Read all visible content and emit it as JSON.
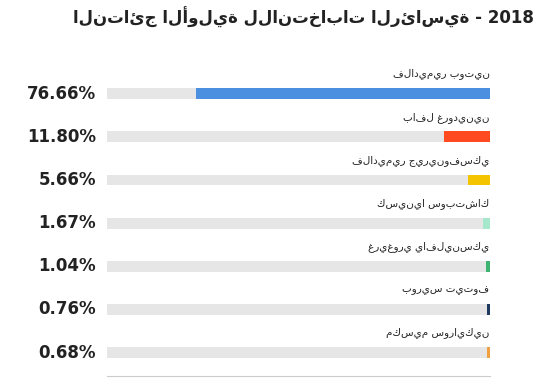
{
  "chart_data": {
    "type": "bar",
    "orientation": "horizontal",
    "title": "النتائج الأولية للانتخابات الرئاسية - 2018",
    "categories": [
      "فلاديمير بوتين",
      "بافل غرودينين",
      "فلاديمير جيرينوفسكي",
      "كسينيا سوبتشاك",
      "غريغوري يافلينسكي",
      "بوريس تيتوف",
      "مكسيم سورايكين"
    ],
    "values": [
      76.66,
      11.8,
      5.66,
      1.67,
      1.04,
      0.76,
      0.68
    ],
    "value_labels": [
      "76.66%",
      "11.80%",
      "5.66%",
      "1.67%",
      "1.04%",
      "0.76%",
      "0.68%"
    ],
    "colors": [
      "#4a8fe0",
      "#ff4b1f",
      "#f5c400",
      "#a6e8cc",
      "#3cb371",
      "#1f3a5f",
      "#f0a040"
    ],
    "xlim": [
      0,
      100
    ],
    "xticks": [],
    "grid": false,
    "data_labels": true,
    "tick_labels": false
  }
}
